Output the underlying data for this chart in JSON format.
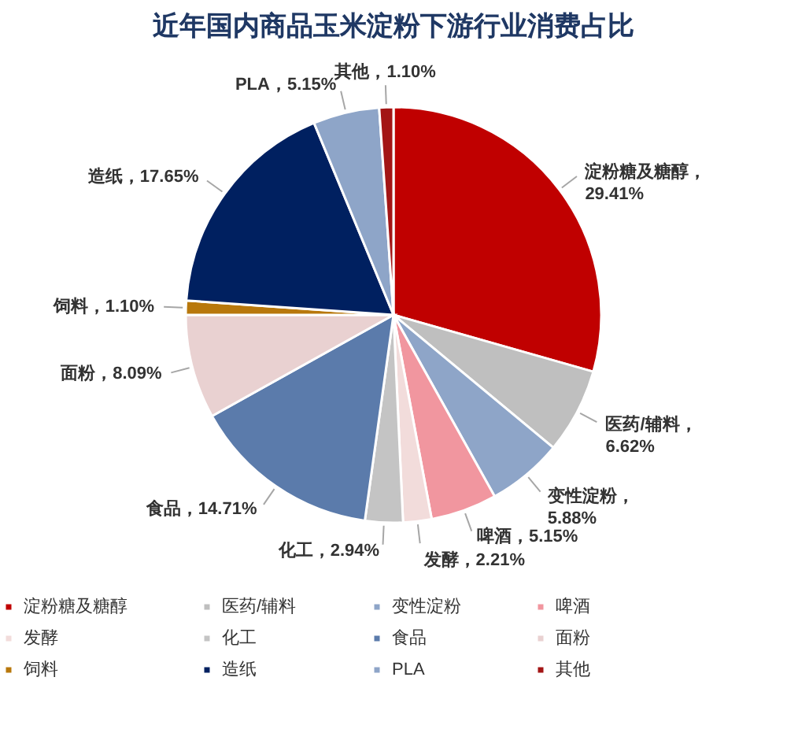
{
  "chart_data": {
    "type": "pie",
    "title": "近年国内商品玉米淀粉下游行业消费占比",
    "categories": [
      "淀粉糖及糖醇",
      "医药/辅料",
      "变性淀粉",
      "啤酒",
      "发酵",
      "化工",
      "食品",
      "面粉",
      "饲料",
      "造纸",
      "PLA",
      "其他"
    ],
    "values": [
      29.41,
      6.62,
      5.88,
      5.15,
      2.21,
      2.94,
      14.71,
      8.09,
      1.1,
      17.65,
      5.15,
      1.1
    ],
    "colors": [
      "#c00000",
      "#bfbfbf",
      "#8ea5c8",
      "#f1969f",
      "#f2dcdb",
      "#c4c4c4",
      "#5b7bab",
      "#e9d1d1",
      "#b8780c",
      "#002060",
      "#8ea5c8",
      "#a31515"
    ],
    "value_labels": [
      "淀粉糖及糖醇，\n29.41%",
      "医药/辅料，\n6.62%",
      "变性淀粉，\n5.88%",
      "啤酒，5.15%",
      "发酵，2.21%",
      "化工，2.94%",
      "食品，14.71%",
      "面粉，8.09%",
      "饲料，1.10%",
      "造纸，17.65%",
      "PLA，5.15%",
      "其他，1.10%"
    ],
    "legend": "bottom"
  }
}
